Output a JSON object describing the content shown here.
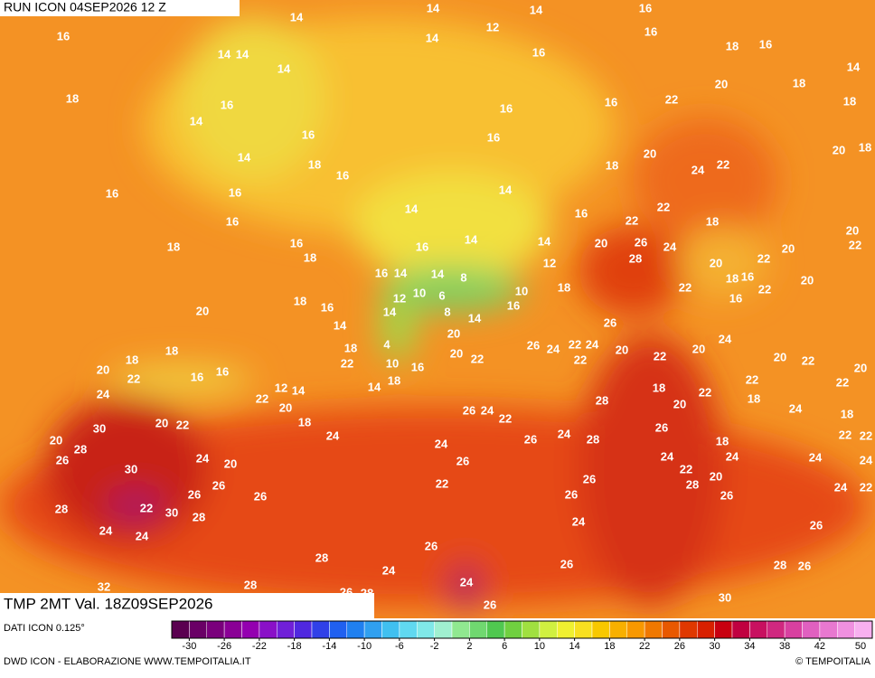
{
  "header": {
    "run": "RUN ICON 04SEP2026 12 Z",
    "field": "TMP 2MT Val. 18Z09SEP2026",
    "source": "DATI ICON 0.125°",
    "credit": "DWD ICON - ELABORAZIONE WWW.TEMPOITALIA.IT",
    "copyright": "© TEMPOITALIA"
  },
  "map_labels": [
    14,
    14,
    16,
    14,
    12,
    14,
    16,
    16,
    18,
    16,
    14,
    14,
    16,
    14,
    14,
    18,
    20,
    18,
    22,
    16,
    16,
    16,
    14,
    18,
    16,
    16,
    20,
    18,
    14,
    20,
    18,
    18,
    24,
    22,
    16,
    16,
    16,
    14,
    22,
    14,
    16,
    22,
    18,
    16,
    20,
    22,
    18,
    16,
    16,
    14,
    14,
    20,
    26,
    24,
    20,
    18,
    28,
    12,
    20,
    22,
    16,
    14,
    14,
    8,
    18,
    16,
    20,
    12,
    10,
    6,
    10,
    18,
    22,
    22,
    18,
    16,
    20,
    14,
    8,
    14,
    16,
    16,
    14,
    26,
    20,
    4,
    26,
    24,
    22,
    24,
    24,
    18,
    18,
    18,
    20,
    20,
    22,
    20,
    22,
    22,
    22,
    20,
    22,
    20,
    16,
    16,
    22,
    10,
    16,
    20,
    22,
    22,
    18,
    24,
    12,
    14,
    22,
    14,
    18,
    28,
    20,
    22,
    18,
    24,
    20,
    26,
    24,
    22,
    18,
    20,
    22,
    18,
    26,
    30,
    24,
    28,
    24,
    22,
    20,
    28,
    26,
    24,
    18,
    22,
    26,
    24,
    20,
    26,
    24,
    24,
    24,
    24,
    30,
    22,
    20,
    26,
    26,
    28,
    22,
    24,
    22,
    26,
    26,
    26,
    26,
    28,
    22,
    30,
    28,
    24,
    26,
    24,
    24,
    26,
    28,
    24,
    26,
    28,
    26,
    24,
    32,
    28,
    26,
    28,
    26,
    30,
    28
  ],
  "colorbar": {
    "colors": [
      "#5a0050",
      "#6a0066",
      "#7a007c",
      "#8a0096",
      "#9400b0",
      "#8a10c8",
      "#7020d8",
      "#5028e0",
      "#3040e8",
      "#2060f0",
      "#2080f0",
      "#30a0f0",
      "#40c0f0",
      "#60d8f0",
      "#80e8e8",
      "#a0f0d0",
      "#90e890",
      "#70d870",
      "#50c850",
      "#70d040",
      "#a0e040",
      "#d0f040",
      "#f0f030",
      "#f8e020",
      "#f8c800",
      "#f8b000",
      "#f89800",
      "#f07800",
      "#e85800",
      "#e03800",
      "#d82000",
      "#c80010",
      "#c00040",
      "#c81060",
      "#d02880",
      "#d840a0",
      "#e060c0",
      "#e878d0",
      "#f090e0",
      "#f8b0f0"
    ],
    "lim": [
      -32,
      48
    ],
    "ticks": [
      -30,
      -26,
      -22,
      -18,
      -14,
      -10,
      -6,
      -2,
      2,
      6,
      10,
      14,
      18,
      22,
      26,
      30,
      34,
      38,
      42,
      50
    ]
  }
}
